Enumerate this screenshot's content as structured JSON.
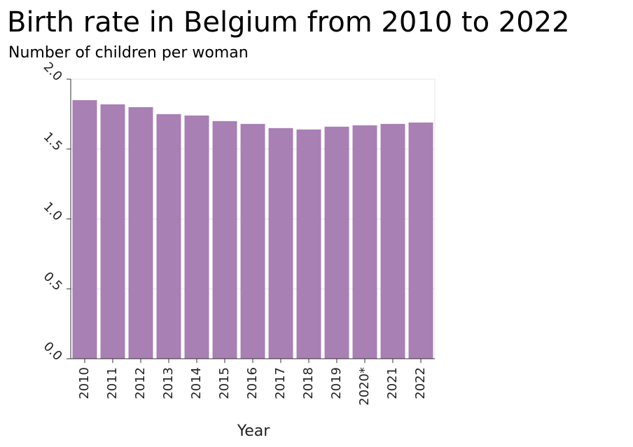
{
  "chart_data": {
    "type": "bar",
    "title": "Birth rate in Belgium from 2010 to 2022",
    "ylabel": "Number of children per woman",
    "xlabel": "Year",
    "categories": [
      "2010",
      "2011",
      "2012",
      "2013",
      "2014",
      "2015",
      "2016",
      "2017",
      "2018",
      "2019",
      "2020*",
      "2021",
      "2022"
    ],
    "values": [
      1.85,
      1.82,
      1.8,
      1.75,
      1.74,
      1.7,
      1.68,
      1.65,
      1.64,
      1.66,
      1.67,
      1.68,
      1.69
    ],
    "yticks": [
      "0.0",
      "0.5",
      "1.0",
      "1.5",
      "2.0"
    ],
    "ylim": [
      0,
      2
    ],
    "grid": true,
    "bar_color": "#a880b4"
  }
}
